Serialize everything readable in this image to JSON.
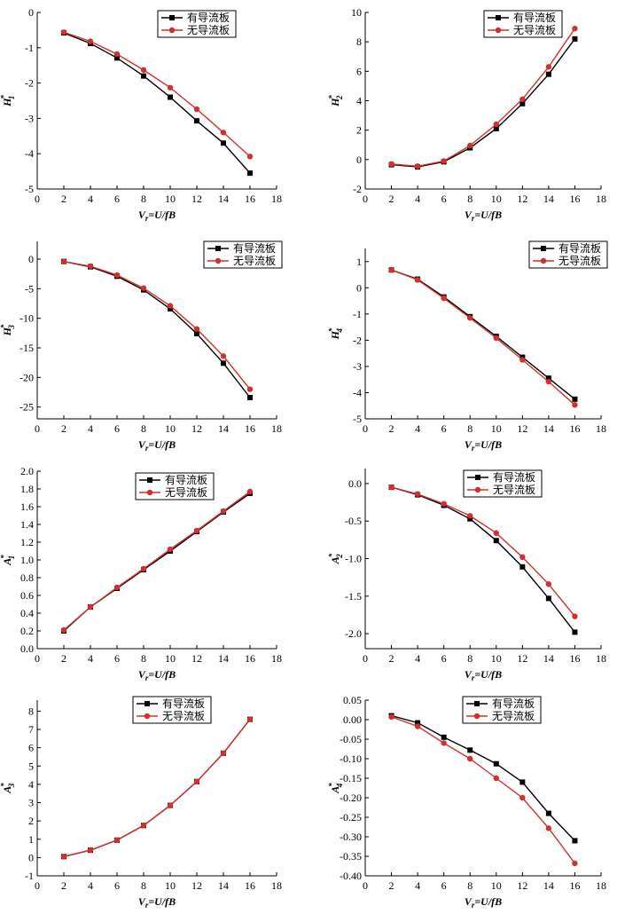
{
  "legend_labels": [
    "有导流板",
    "无导流板"
  ],
  "colors": {
    "with": "#000000",
    "without": "#d23030"
  },
  "chart_data": [
    {
      "type": "line",
      "title": "",
      "xlabel": "Vr=U/fB",
      "ylabel": "H1*",
      "x": [
        2,
        4,
        6,
        8,
        10,
        12,
        14,
        16
      ],
      "xlim": [
        0,
        18
      ],
      "xticks": [
        0,
        2,
        4,
        6,
        8,
        10,
        12,
        14,
        16,
        18
      ],
      "ylim": [
        -5,
        0
      ],
      "yticks": [
        "0",
        "-1",
        "-2",
        "-3",
        "-4",
        "-5"
      ],
      "legend_position": "top-center",
      "series": [
        {
          "name": "有导流板",
          "values": [
            -0.58,
            -0.88,
            -1.29,
            -1.8,
            -2.4,
            -3.07,
            -3.7,
            -4.55
          ]
        },
        {
          "name": "无导流板",
          "values": [
            -0.56,
            -0.82,
            -1.18,
            -1.63,
            -2.13,
            -2.74,
            -3.4,
            -4.08
          ]
        }
      ]
    },
    {
      "type": "line",
      "title": "",
      "xlabel": "Vr=U/fB",
      "ylabel": "H2*",
      "x": [
        2,
        4,
        6,
        8,
        10,
        12,
        14,
        16
      ],
      "xlim": [
        0,
        18
      ],
      "xticks": [
        0,
        2,
        4,
        6,
        8,
        10,
        12,
        14,
        16,
        18
      ],
      "ylim": [
        -2,
        10
      ],
      "yticks": [
        "10",
        "8",
        "6",
        "4",
        "2",
        "0",
        "-2"
      ],
      "legend_position": "top-right",
      "series": [
        {
          "name": "有导流板",
          "values": [
            -0.35,
            -0.5,
            -0.15,
            0.8,
            2.1,
            3.8,
            5.8,
            8.2
          ]
        },
        {
          "name": "无导流板",
          "values": [
            -0.3,
            -0.45,
            -0.1,
            0.95,
            2.4,
            4.1,
            6.3,
            8.9
          ]
        }
      ]
    },
    {
      "type": "line",
      "title": "",
      "xlabel": "Vr=U/fB",
      "ylabel": "H3*",
      "x": [
        2,
        4,
        6,
        8,
        10,
        12,
        14,
        16
      ],
      "xlim": [
        0,
        18
      ],
      "xticks": [
        0,
        2,
        4,
        6,
        8,
        10,
        12,
        14,
        16,
        18
      ],
      "ylim": [
        -27,
        3
      ],
      "yticks": [
        "0",
        "-5",
        "-10",
        "-15",
        "-20",
        "-25"
      ],
      "legend_position": "top-right",
      "series": [
        {
          "name": "有导流板",
          "values": [
            -0.4,
            -1.3,
            -2.9,
            -5.2,
            -8.4,
            -12.6,
            -17.6,
            -23.4
          ]
        },
        {
          "name": "无导流板",
          "values": [
            -0.4,
            -1.2,
            -2.7,
            -4.9,
            -7.9,
            -11.8,
            -16.4,
            -22.0
          ]
        }
      ]
    },
    {
      "type": "line",
      "title": "",
      "xlabel": "Vr=U/fB",
      "ylabel": "H4*",
      "x": [
        2,
        4,
        6,
        8,
        10,
        12,
        14,
        16
      ],
      "xlim": [
        0,
        18
      ],
      "xticks": [
        0,
        2,
        4,
        6,
        8,
        10,
        12,
        14,
        16,
        18
      ],
      "ylim": [
        -5,
        1.5
      ],
      "yticks": [
        "1",
        "0",
        "-1",
        "-2",
        "-3",
        "-4",
        "-5"
      ],
      "legend_position": "top-right",
      "series": [
        {
          "name": "有导流板",
          "values": [
            0.68,
            0.33,
            -0.35,
            -1.1,
            -1.85,
            -2.65,
            -3.45,
            -4.25
          ]
        },
        {
          "name": "无导流板",
          "values": [
            0.68,
            0.3,
            -0.4,
            -1.15,
            -1.92,
            -2.75,
            -3.58,
            -4.47
          ]
        }
      ]
    },
    {
      "type": "line",
      "title": "",
      "xlabel": "Vr=U/fB",
      "ylabel": "A1*",
      "x": [
        2,
        4,
        6,
        8,
        10,
        12,
        14,
        16
      ],
      "xlim": [
        0,
        18
      ],
      "xticks": [
        0,
        2,
        4,
        6,
        8,
        10,
        12,
        14,
        16,
        18
      ],
      "ylim": [
        0,
        2
      ],
      "yticks": [
        "2.0",
        "1.8",
        "1.6",
        "1.4",
        "1.2",
        "1.0",
        "0.8",
        "0.6",
        "0.4",
        "0.2",
        "0.0"
      ],
      "legend_position": "top-center",
      "series": [
        {
          "name": "有导流板",
          "values": [
            0.2,
            0.47,
            0.68,
            0.89,
            1.1,
            1.32,
            1.54,
            1.75
          ]
        },
        {
          "name": "无导流板",
          "values": [
            0.21,
            0.47,
            0.69,
            0.9,
            1.12,
            1.33,
            1.55,
            1.77
          ]
        }
      ]
    },
    {
      "type": "line",
      "title": "",
      "xlabel": "Vr=U/fB",
      "ylabel": "A2*",
      "x": [
        2,
        4,
        6,
        8,
        10,
        12,
        14,
        16
      ],
      "xlim": [
        0,
        18
      ],
      "xticks": [
        0,
        2,
        4,
        6,
        8,
        10,
        12,
        14,
        16,
        18
      ],
      "ylim": [
        -2.2,
        0.2
      ],
      "yticks": [
        "0.0",
        "-0.5",
        "-1.0",
        "-1.5",
        "-2.0"
      ],
      "legend_position": "top-right",
      "series": [
        {
          "name": "有导流板",
          "values": [
            -0.05,
            -0.15,
            -0.29,
            -0.47,
            -0.76,
            -1.11,
            -1.53,
            -1.98
          ]
        },
        {
          "name": "无导流板",
          "values": [
            -0.05,
            -0.14,
            -0.27,
            -0.43,
            -0.66,
            -0.98,
            -1.34,
            -1.77
          ]
        }
      ]
    },
    {
      "type": "line",
      "title": "",
      "xlabel": "Vr=U/fB",
      "ylabel": "A3*",
      "x": [
        2,
        4,
        6,
        8,
        10,
        12,
        14,
        16
      ],
      "xlim": [
        0,
        18
      ],
      "xticks": [
        0,
        2,
        4,
        6,
        8,
        10,
        12,
        14,
        16,
        18
      ],
      "ylim": [
        -1,
        8.6
      ],
      "yticks": [
        "8",
        "7",
        "6",
        "5",
        "4",
        "3",
        "2",
        "1",
        "0",
        "-1"
      ],
      "legend_position": "top-center",
      "series": [
        {
          "name": "有导流板",
          "values": [
            0.05,
            0.4,
            0.95,
            1.75,
            2.85,
            4.15,
            5.7,
            7.55
          ]
        },
        {
          "name": "无导流板",
          "values": [
            0.05,
            0.4,
            0.95,
            1.75,
            2.85,
            4.15,
            5.7,
            7.55
          ]
        }
      ]
    },
    {
      "type": "line",
      "title": "",
      "xlabel": "Vr=U/fB",
      "ylabel": "A4*",
      "x": [
        2,
        4,
        6,
        8,
        10,
        12,
        14,
        16
      ],
      "xlim": [
        0,
        18
      ],
      "xticks": [
        0,
        2,
        4,
        6,
        8,
        10,
        12,
        14,
        16,
        18
      ],
      "ylim": [
        -0.4,
        0.05
      ],
      "yticks": [
        "0.05",
        "0.00",
        "-0.05",
        "-0.10",
        "-0.15",
        "-0.20",
        "-0.25",
        "-0.30",
        "-0.35",
        "-0.40"
      ],
      "legend_position": "top-center",
      "series": [
        {
          "name": "有导流板",
          "values": [
            0.01,
            -0.008,
            -0.045,
            -0.078,
            -0.113,
            -0.16,
            -0.24,
            -0.31
          ]
        },
        {
          "name": "无导流板",
          "values": [
            0.007,
            -0.017,
            -0.06,
            -0.1,
            -0.15,
            -0.2,
            -0.278,
            -0.368
          ]
        }
      ]
    }
  ]
}
